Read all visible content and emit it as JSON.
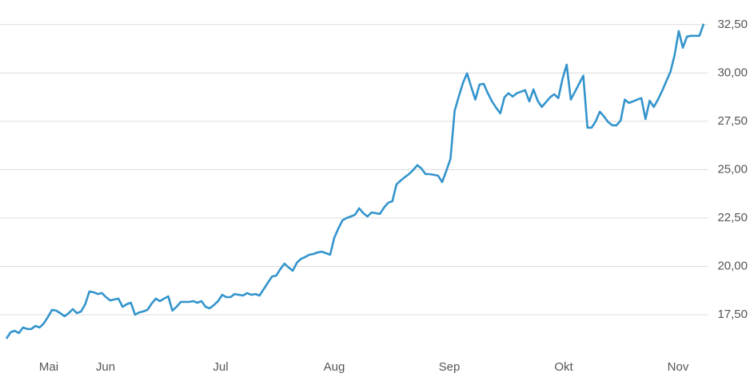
{
  "chart_data": {
    "type": "line",
    "color": "#3394cc",
    "grid": true,
    "ylim": [
      15.6,
      33.4
    ],
    "yticks": [
      {
        "value": 17.5,
        "label": "17,50"
      },
      {
        "value": 20,
        "label": "20,00"
      },
      {
        "value": 22.5,
        "label": "22,50"
      },
      {
        "value": 25,
        "label": "25,00"
      },
      {
        "value": 27.5,
        "label": "27,50"
      },
      {
        "value": 30,
        "label": "30,00"
      },
      {
        "value": 32.5,
        "label": "32,50"
      }
    ],
    "x_axis_labels": [
      "Mai",
      "Jun",
      "Jul",
      "Aug",
      "Sep",
      "Okt",
      "Nov"
    ],
    "values": [
      16.26,
      16.59,
      16.67,
      16.55,
      16.84,
      16.76,
      16.76,
      16.92,
      16.84,
      17.05,
      17.38,
      17.75,
      17.71,
      17.58,
      17.42,
      17.58,
      17.79,
      17.58,
      17.67,
      18.04,
      18.7,
      18.66,
      18.57,
      18.62,
      18.41,
      18.24,
      18.29,
      18.33,
      17.91,
      18.04,
      18.12,
      17.5,
      17.62,
      17.67,
      17.75,
      18.08,
      18.33,
      18.2,
      18.33,
      18.45,
      17.71,
      17.91,
      18.16,
      18.16,
      18.16,
      18.2,
      18.12,
      18.2,
      17.91,
      17.83,
      18.0,
      18.2,
      18.53,
      18.41,
      18.41,
      18.57,
      18.53,
      18.49,
      18.62,
      18.53,
      18.57,
      18.49,
      18.82,
      19.15,
      19.48,
      19.52,
      19.86,
      20.14,
      19.94,
      19.77,
      20.19,
      20.39,
      20.48,
      20.6,
      20.64,
      20.72,
      20.76,
      20.68,
      20.6,
      21.47,
      21.96,
      22.38,
      22.5,
      22.58,
      22.67,
      23.0,
      22.75,
      22.58,
      22.79,
      22.75,
      22.71,
      23.04,
      23.29,
      23.37,
      24.24,
      24.44,
      24.61,
      24.77,
      24.98,
      25.23,
      25.06,
      24.77,
      24.77,
      24.73,
      24.69,
      24.36,
      24.94,
      25.56,
      28.04,
      28.78,
      29.48,
      29.98,
      29.28,
      28.62,
      29.4,
      29.44,
      28.95,
      28.53,
      28.2,
      27.91,
      28.74,
      28.95,
      28.78,
      28.95,
      29.03,
      29.11,
      28.53,
      29.15,
      28.57,
      28.24,
      28.49,
      28.74,
      28.9,
      28.7,
      29.69,
      30.43,
      28.62,
      29.03,
      29.44,
      29.86,
      27.17,
      27.17,
      27.5,
      28.0,
      27.75,
      27.46,
      27.29,
      27.29,
      27.54,
      28.62,
      28.45,
      28.53,
      28.62,
      28.7,
      27.62,
      28.57,
      28.24,
      28.62,
      29.07,
      29.57,
      30.06,
      30.93,
      32.17,
      31.3,
      31.88,
      31.92,
      31.92,
      31.92,
      32.54
    ]
  }
}
